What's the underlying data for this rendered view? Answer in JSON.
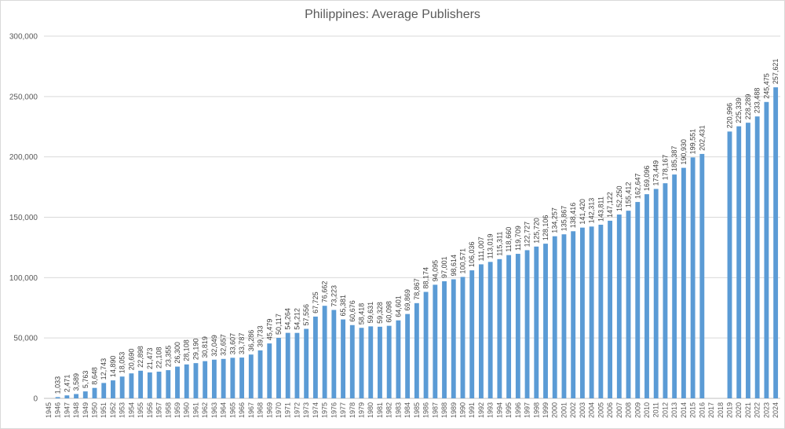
{
  "chart_data": {
    "type": "bar",
    "title": "Philippines: Average Publishers",
    "xlabel": "",
    "ylabel": "",
    "ylim": [
      0,
      300000
    ],
    "yticks": [
      0,
      50000,
      100000,
      150000,
      200000,
      250000,
      300000
    ],
    "ytick_labels": [
      "0",
      "50,000",
      "100,000",
      "150,000",
      "200,000",
      "250,000",
      "300,000"
    ],
    "grid": true,
    "legend": "none",
    "bar_color": "#5b9bd5",
    "categories": [
      "1945",
      "1946",
      "1947",
      "1948",
      "1949",
      "1950",
      "1951",
      "1952",
      "1953",
      "1954",
      "1955",
      "1956",
      "1957",
      "1958",
      "1959",
      "1960",
      "1961",
      "1962",
      "1963",
      "1964",
      "1965",
      "1966",
      "1967",
      "1968",
      "1969",
      "1970",
      "1971",
      "1972",
      "1973",
      "1974",
      "1975",
      "1976",
      "1977",
      "1978",
      "1979",
      "1980",
      "1981",
      "1982",
      "1983",
      "1984",
      "1985",
      "1986",
      "1987",
      "1988",
      "1989",
      "1990",
      "1991",
      "1992",
      "1993",
      "1994",
      "1995",
      "1996",
      "1997",
      "1998",
      "1999",
      "2000",
      "2001",
      "2002",
      "2003",
      "2004",
      "2005",
      "2006",
      "2007",
      "2008",
      "2009",
      "2010",
      "2011",
      "2012",
      "2013",
      "2014",
      "2015",
      "2016",
      "2017",
      "2018",
      "2019",
      "2020",
      "2021",
      "2022",
      "2023",
      "2024"
    ],
    "values": [
      null,
      1033,
      2471,
      3589,
      5763,
      8648,
      12743,
      14890,
      18053,
      20690,
      22898,
      21473,
      22108,
      23355,
      26300,
      28108,
      29190,
      30819,
      32049,
      32657,
      33607,
      33787,
      36286,
      39733,
      45479,
      50117,
      54264,
      54212,
      57556,
      67725,
      76662,
      73223,
      65381,
      60676,
      58418,
      59631,
      59328,
      60098,
      64601,
      69869,
      78867,
      88174,
      94095,
      97001,
      98614,
      100571,
      106036,
      111007,
      113019,
      115311,
      118660,
      119709,
      122727,
      125720,
      128106,
      134257,
      135867,
      138416,
      141420,
      142313,
      143811,
      147122,
      152250,
      155412,
      162647,
      169096,
      173449,
      178167,
      185387,
      190930,
      199551,
      202431,
      null,
      null,
      220996,
      225339,
      228289,
      233488,
      245475,
      257621
    ],
    "data_labels": [
      "",
      "1,033",
      "2,471",
      "3,589",
      "5,763",
      "8,648",
      "12,743",
      "14,890",
      "18,053",
      "20,690",
      "22,898",
      "21,473",
      "22,108",
      "23,355",
      "26,300",
      "28,108",
      "29,190",
      "30,819",
      "32,049",
      "32,657",
      "33,607",
      "33,787",
      "36,286",
      "39,733",
      "45,479",
      "50,117",
      "54,264",
      "54,212",
      "57,556",
      "67,725",
      "76,662",
      "73,223",
      "65,381",
      "60,676",
      "58,418",
      "59,631",
      "59,328",
      "60,098",
      "64,601",
      "69,869",
      "78,867",
      "88,174",
      "94,095",
      "97,001",
      "98,614",
      "100,571",
      "106,036",
      "111,007",
      "113,019",
      "115,311",
      "118,660",
      "119,709",
      "122,727",
      "125,720",
      "128,106",
      "134,257",
      "135,867",
      "138,416",
      "141,420",
      "142,313",
      "143,811",
      "147,122",
      "152,250",
      "155,412",
      "162,647",
      "169,096",
      "173,449",
      "178,167",
      "185,387",
      "190,930",
      "199,551",
      "202,431",
      "",
      "",
      "220,996",
      "225,339",
      "228,289",
      "233,488",
      "245,475",
      "257,621"
    ]
  }
}
